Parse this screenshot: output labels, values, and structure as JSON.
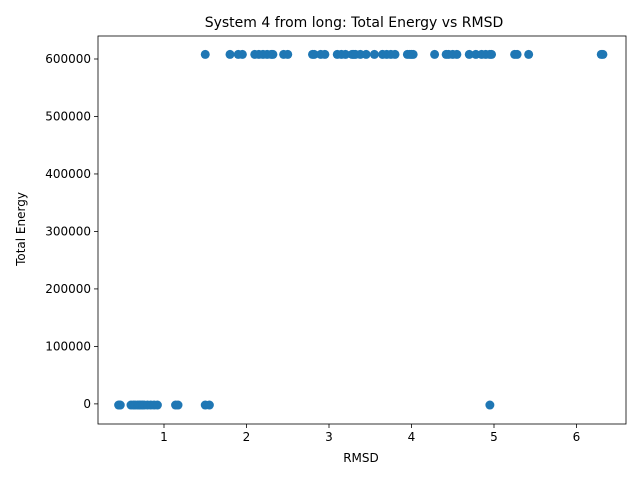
{
  "chart_data": {
    "type": "scatter",
    "title": "System 4 from long: Total Energy vs RMSD",
    "xlabel": "RMSD",
    "ylabel": "Total Energy",
    "xlim": [
      0.2,
      6.6
    ],
    "ylim": [
      -35000,
      640000
    ],
    "xticks": [
      1,
      2,
      3,
      4,
      5,
      6
    ],
    "yticks": [
      0,
      100000,
      200000,
      300000,
      400000,
      500000,
      600000
    ],
    "grid": false,
    "marker_color": "#1f77b4",
    "series": [
      {
        "x": [
          0.45,
          0.46,
          0.47,
          0.6,
          0.63,
          0.65,
          0.68,
          0.7,
          0.72,
          0.74,
          0.76,
          0.8,
          0.84,
          0.88,
          0.92,
          1.14,
          1.17,
          1.5,
          1.55,
          4.95
        ],
        "y": [
          -2000,
          -2000,
          -2000,
          -2000,
          -2000,
          -2000,
          -2000,
          -2000,
          -2000,
          -2000,
          -2000,
          -2000,
          -2000,
          -2000,
          -2000,
          -2000,
          -2000,
          -2000,
          -2000,
          -2000
        ]
      },
      {
        "x": [
          1.5,
          1.8,
          1.9,
          1.95,
          2.1,
          2.15,
          2.2,
          2.25,
          2.3,
          2.32,
          2.45,
          2.5,
          2.8,
          2.82,
          2.9,
          2.95,
          3.1,
          3.15,
          3.2,
          3.28,
          3.3,
          3.32,
          3.38,
          3.45,
          3.55,
          3.65,
          3.7,
          3.75,
          3.8,
          3.95,
          3.98,
          4.0,
          4.02,
          4.28,
          4.42,
          4.45,
          4.5,
          4.55,
          4.7,
          4.78,
          4.85,
          4.9,
          4.95,
          4.97,
          5.25,
          5.28,
          5.42,
          6.3,
          6.32
        ],
        "y": [
          608000,
          608000,
          608000,
          608000,
          608000,
          608000,
          608000,
          608000,
          608000,
          608000,
          608000,
          608000,
          608000,
          608000,
          608000,
          608000,
          608000,
          608000,
          608000,
          608000,
          608000,
          608000,
          608000,
          608000,
          608000,
          608000,
          608000,
          608000,
          608000,
          608000,
          608000,
          608000,
          608000,
          608000,
          608000,
          608000,
          608000,
          608000,
          608000,
          608000,
          608000,
          608000,
          608000,
          608000,
          608000,
          608000,
          608000,
          608000,
          608000
        ]
      }
    ]
  }
}
